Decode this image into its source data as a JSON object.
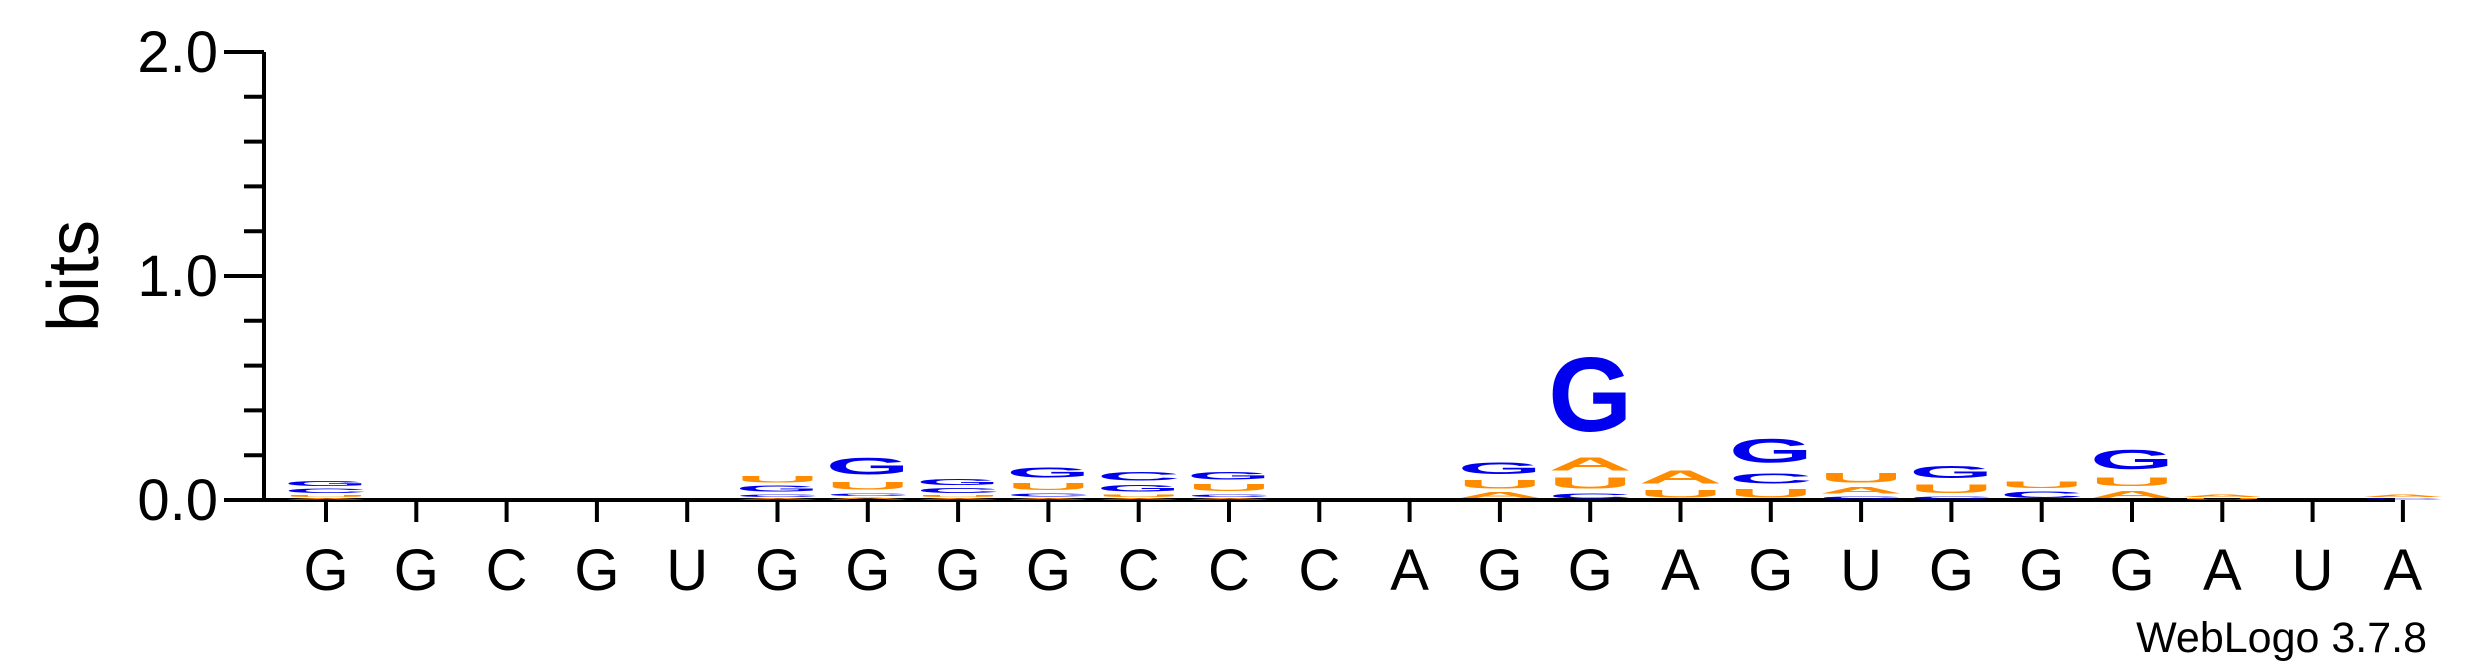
{
  "chart_data": {
    "type": "sequence-logo",
    "ylabel": "bits",
    "ylim": [
      0,
      2
    ],
    "yticks": [
      {
        "value": 0,
        "label": "0.0"
      },
      {
        "value": 1,
        "label": "1.0"
      },
      {
        "value": 2,
        "label": "2.0"
      }
    ],
    "minor_tick_step": 0.2,
    "x_labels": [
      "G",
      "G",
      "C",
      "G",
      "U",
      "G",
      "G",
      "G",
      "G",
      "C",
      "C",
      "C",
      "A",
      "G",
      "G",
      "A",
      "G",
      "U",
      "G",
      "G",
      "G",
      "A",
      "U",
      "A"
    ],
    "colors": {
      "G": "#0000ee",
      "C": "#0000ee",
      "U": "#ff8c00",
      "A": "#ff8c00",
      "axis": "#000000"
    },
    "stacks": [
      [
        [
          "A",
          0.01
        ],
        [
          "U",
          0.015
        ],
        [
          "C",
          0.03
        ],
        [
          "G",
          0.035
        ]
      ],
      [],
      [],
      [],
      [],
      [
        [
          "A",
          0.01
        ],
        [
          "C",
          0.02
        ],
        [
          "G",
          0.04
        ],
        [
          "U",
          0.045
        ]
      ],
      [
        [
          "A",
          0.015
        ],
        [
          "C",
          0.02
        ],
        [
          "U",
          0.055
        ],
        [
          "G",
          0.12
        ]
      ],
      [
        [
          "A",
          0.01
        ],
        [
          "U",
          0.015
        ],
        [
          "C",
          0.035
        ],
        [
          "G",
          0.04
        ]
      ],
      [
        [
          "A",
          0.01
        ],
        [
          "C",
          0.025
        ],
        [
          "U",
          0.05
        ],
        [
          "G",
          0.075
        ]
      ],
      [
        [
          "A",
          0.01
        ],
        [
          "U",
          0.02
        ],
        [
          "G",
          0.045
        ],
        [
          "C",
          0.06
        ]
      ],
      [
        [
          "A",
          0.01
        ],
        [
          "C",
          0.02
        ],
        [
          "U",
          0.05
        ],
        [
          "G",
          0.055
        ]
      ],
      [],
      [],
      [
        [
          "A",
          0.04
        ],
        [
          "U",
          0.06
        ],
        [
          "G",
          0.085
        ]
      ],
      [
        [
          "C",
          0.035
        ],
        [
          "U",
          0.08
        ],
        [
          "A",
          0.09
        ],
        [
          "G",
          0.53
        ]
      ],
      [
        [
          "U",
          0.055
        ],
        [
          "A",
          0.09
        ]
      ],
      [
        [
          "U",
          0.06
        ],
        [
          "C",
          0.075
        ],
        [
          "G",
          0.17
        ]
      ],
      [
        [
          "C",
          0.02
        ],
        [
          "A",
          0.045
        ],
        [
          "U",
          0.07
        ]
      ],
      [
        [
          "C",
          0.02
        ],
        [
          "U",
          0.06
        ],
        [
          "G",
          0.09
        ]
      ],
      [
        [
          "C",
          0.045
        ],
        [
          "U",
          0.045
        ]
      ],
      [
        [
          "A",
          0.05
        ],
        [
          "U",
          0.06
        ],
        [
          "G",
          0.14
        ]
      ],
      [
        [
          "U",
          0.01
        ],
        [
          "A",
          0.02
        ]
      ],
      [],
      [
        [
          "C",
          0.01
        ],
        [
          "A",
          0.02
        ]
      ]
    ]
  },
  "watermark": "WebLogo 3.7.8"
}
